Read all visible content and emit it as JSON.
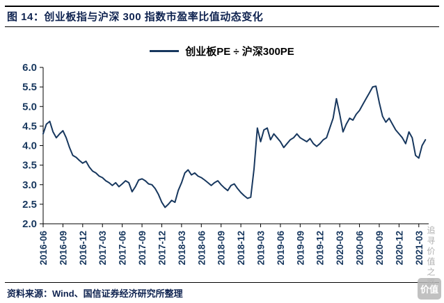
{
  "header": {
    "title": "图 14：创业板指与沪深 300 指数市盈率比值动态变化"
  },
  "legend": {
    "label": "创业板PE ÷ 沪深300PE"
  },
  "footer": {
    "source": "资料来源：Wind、国信证券经济研究所整理"
  },
  "watermark": {
    "text": "追寻价值之路",
    "logo_text": "价值"
  },
  "colors": {
    "line": "#17375E",
    "axis_text": "#17375E",
    "axis_line": "#000000",
    "title_text": "#0f2350"
  },
  "chart_data": {
    "type": "line",
    "title": "图 14：创业板指与沪深 300 指数市盈率比值动态变化",
    "series_name": "创业板PE ÷ 沪深300PE",
    "xlabel": "",
    "ylabel": "",
    "ylim": [
      2.0,
      6.0
    ],
    "y_ticks": [
      2.0,
      2.5,
      3.0,
      3.5,
      4.0,
      4.5,
      5.0,
      5.5,
      6.0
    ],
    "grid": false,
    "legend_position": "top-center",
    "x_tick_labels": [
      "2016-06",
      "2016-09",
      "2016-12",
      "2017-03",
      "2017-06",
      "2017-09",
      "2017-12",
      "2018-03",
      "2018-06",
      "2018-09",
      "2018-12",
      "2019-03",
      "2019-06",
      "2019-09",
      "2019-12",
      "2020-03",
      "2020-06",
      "2020-09",
      "2020-12",
      "2021-03"
    ],
    "x_tick_months": [
      0,
      3,
      6,
      9,
      12,
      15,
      18,
      21,
      24,
      27,
      30,
      33,
      36,
      39,
      42,
      45,
      48,
      51,
      54,
      57
    ],
    "x_total_months": 58.5,
    "x_start_label": "2016-06",
    "x_step_months": 0.5,
    "values": [
      4.3,
      4.55,
      4.62,
      4.35,
      4.2,
      4.3,
      4.38,
      4.2,
      3.95,
      3.75,
      3.7,
      3.62,
      3.55,
      3.6,
      3.45,
      3.35,
      3.3,
      3.22,
      3.18,
      3.1,
      3.05,
      2.98,
      3.05,
      2.95,
      3.02,
      3.1,
      3.05,
      2.82,
      2.95,
      3.12,
      3.15,
      3.1,
      3.02,
      3.0,
      2.9,
      2.75,
      2.55,
      2.42,
      2.5,
      2.6,
      2.55,
      2.85,
      3.05,
      3.3,
      3.38,
      3.25,
      3.3,
      3.22,
      3.18,
      3.12,
      3.05,
      2.98,
      3.05,
      3.1,
      3.0,
      2.92,
      2.85,
      2.98,
      3.02,
      2.9,
      2.8,
      2.72,
      2.65,
      2.68,
      3.4,
      4.45,
      4.1,
      4.4,
      4.45,
      4.15,
      4.3,
      4.2,
      4.1,
      3.95,
      4.05,
      4.15,
      4.2,
      4.3,
      4.2,
      4.15,
      4.1,
      4.18,
      4.05,
      3.98,
      4.05,
      4.15,
      4.2,
      4.45,
      4.7,
      5.2,
      4.8,
      4.35,
      4.55,
      4.7,
      4.65,
      4.8,
      4.9,
      5.05,
      5.2,
      5.35,
      5.5,
      5.52,
      5.1,
      4.75,
      4.6,
      4.7,
      4.55,
      4.4,
      4.3,
      4.2,
      4.05,
      4.35,
      4.2,
      3.75,
      3.68,
      4.0,
      4.15
    ]
  }
}
